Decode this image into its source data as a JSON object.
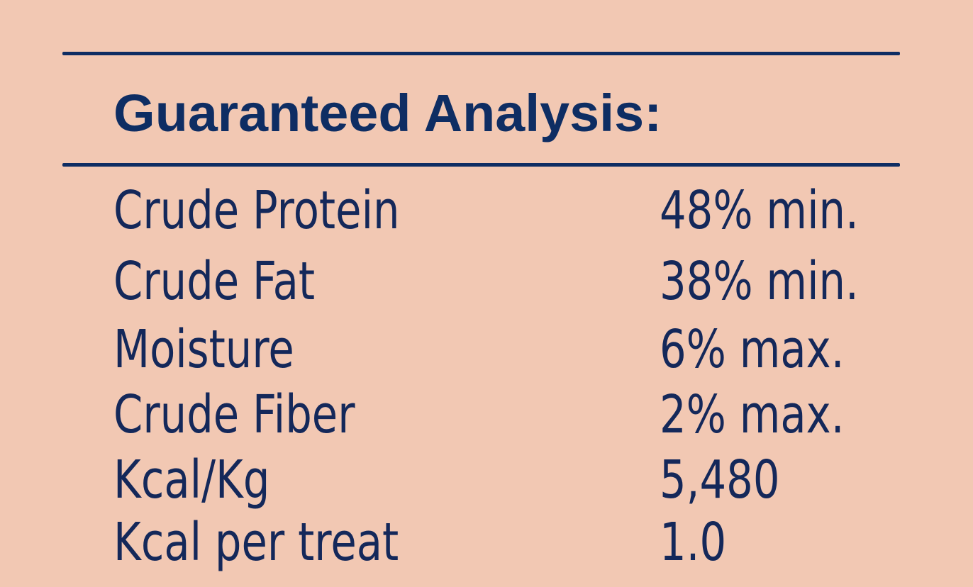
{
  "title": "Guaranteed Analysis:",
  "rows": [
    {
      "label": "Crude Protein",
      "value": "48% min."
    },
    {
      "label": "Crude Fat",
      "value": "38% min."
    },
    {
      "label": "Moisture",
      "value": "6% max."
    },
    {
      "label": "Crude Fiber",
      "value": "2% max."
    },
    {
      "label": "Kcal/Kg",
      "value": "5,480"
    },
    {
      "label": "Kcal per treat",
      "value": "1.0"
    }
  ],
  "colors": {
    "background": "#f2c8b3",
    "ink": "#0e2d63"
  }
}
